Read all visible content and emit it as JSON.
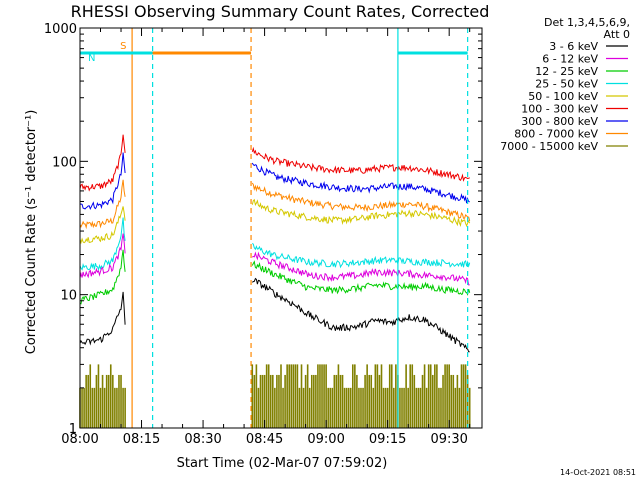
{
  "chart_data": {
    "type": "line",
    "title": "RHESSI Observing Summary Count Rates, Corrected",
    "xlabel": "Start Time (02-Mar-07 07:59:02)",
    "ylabel": "Corrected Count Rate (s⁻¹ detector⁻¹)",
    "y_scale": "log",
    "ylim": [
      1,
      1000
    ],
    "xlim_minutes": [
      0,
      98
    ],
    "x_ticks": [
      {
        "label": "08:00",
        "min": 0
      },
      {
        "label": "08:15",
        "min": 15
      },
      {
        "label": "08:30",
        "min": 30
      },
      {
        "label": "08:45",
        "min": 45
      },
      {
        "label": "09:00",
        "min": 60
      },
      {
        "label": "09:15",
        "min": 75
      },
      {
        "label": "09:30",
        "min": 90
      }
    ],
    "y_ticks": [
      {
        "label": "1",
        "value": 1
      },
      {
        "label": "10",
        "value": 10
      },
      {
        "label": "100",
        "value": 100
      },
      {
        "label": "1000",
        "value": 1000
      }
    ],
    "legend_header": [
      "Det 1,3,4,5,6,9,",
      "Att 0"
    ],
    "legend_position": "right",
    "data_gap_minutes": [
      11,
      42
    ],
    "series": [
      {
        "name": "3 - 6 keV",
        "color": "#000000",
        "values": [
          [
            0,
            4.3
          ],
          [
            5,
            4.6
          ],
          [
            8,
            5.5
          ],
          [
            10,
            8
          ],
          [
            10.5,
            10
          ],
          [
            11,
            6
          ],
          [
            42,
            13
          ],
          [
            45,
            11.5
          ],
          [
            48,
            10
          ],
          [
            52,
            8.5
          ],
          [
            56,
            7
          ],
          [
            62,
            5.6
          ],
          [
            68,
            5.8
          ],
          [
            72,
            6.4
          ],
          [
            76,
            6.2
          ],
          [
            80,
            6.8
          ],
          [
            84,
            6.5
          ],
          [
            88,
            5.4
          ],
          [
            93,
            4.2
          ],
          [
            95,
            3.7
          ]
        ]
      },
      {
        "name": "6 - 12 keV",
        "color": "#dd00dd",
        "values": [
          [
            0,
            14
          ],
          [
            5,
            15
          ],
          [
            8,
            16
          ],
          [
            10,
            22
          ],
          [
            10.5,
            28
          ],
          [
            11,
            20
          ],
          [
            42,
            20
          ],
          [
            45,
            18.5
          ],
          [
            48,
            17
          ],
          [
            52,
            15.5
          ],
          [
            56,
            14
          ],
          [
            62,
            13.5
          ],
          [
            68,
            14
          ],
          [
            72,
            14.8
          ],
          [
            76,
            14.6
          ],
          [
            80,
            14.4
          ],
          [
            84,
            14
          ],
          [
            88,
            13.8
          ],
          [
            93,
            13
          ],
          [
            95,
            12.5
          ]
        ]
      },
      {
        "name": "12 - 25 keV",
        "color": "#00cc00",
        "values": [
          [
            0,
            9
          ],
          [
            5,
            10
          ],
          [
            8,
            11
          ],
          [
            10,
            16
          ],
          [
            10.5,
            22
          ],
          [
            11,
            15
          ],
          [
            42,
            17
          ],
          [
            45,
            15.5
          ],
          [
            48,
            14
          ],
          [
            52,
            12.5
          ],
          [
            56,
            11.2
          ],
          [
            62,
            10.8
          ],
          [
            68,
            11.2
          ],
          [
            72,
            11.8
          ],
          [
            76,
            11.6
          ],
          [
            80,
            11.4
          ],
          [
            84,
            11.6
          ],
          [
            88,
            11
          ],
          [
            93,
            10.6
          ],
          [
            95,
            10.5
          ]
        ]
      },
      {
        "name": "25 - 50 keV",
        "color": "#00e0e0",
        "values": [
          [
            0,
            16
          ],
          [
            5,
            16.5
          ],
          [
            8,
            18
          ],
          [
            10,
            28
          ],
          [
            10.5,
            36
          ],
          [
            11,
            24
          ],
          [
            42,
            23
          ],
          [
            45,
            21
          ],
          [
            48,
            19.5
          ],
          [
            52,
            18.5
          ],
          [
            56,
            17.5
          ],
          [
            62,
            17
          ],
          [
            68,
            17.5
          ],
          [
            72,
            18
          ],
          [
            76,
            18.2
          ],
          [
            80,
            17.8
          ],
          [
            84,
            17.6
          ],
          [
            88,
            17.4
          ],
          [
            93,
            17
          ],
          [
            95,
            16.8
          ]
        ]
      },
      {
        "name": "50 - 100 keV",
        "color": "#d4c800",
        "values": [
          [
            0,
            26
          ],
          [
            5,
            26.5
          ],
          [
            8,
            28
          ],
          [
            10,
            40
          ],
          [
            10.5,
            48
          ],
          [
            11,
            36
          ],
          [
            42,
            50
          ],
          [
            45,
            45
          ],
          [
            48,
            42
          ],
          [
            52,
            40
          ],
          [
            56,
            38
          ],
          [
            62,
            36
          ],
          [
            68,
            37
          ],
          [
            72,
            39
          ],
          [
            76,
            40
          ],
          [
            80,
            41
          ],
          [
            84,
            40
          ],
          [
            88,
            38
          ],
          [
            93,
            35
          ],
          [
            95,
            34
          ]
        ]
      },
      {
        "name": "100 - 300 keV",
        "color": "#ee0000",
        "values": [
          [
            0,
            64
          ],
          [
            5,
            65
          ],
          [
            8,
            72
          ],
          [
            10,
            110
          ],
          [
            10.5,
            165
          ],
          [
            11,
            120
          ],
          [
            42,
            120
          ],
          [
            45,
            108
          ],
          [
            48,
            100
          ],
          [
            52,
            95
          ],
          [
            56,
            90
          ],
          [
            62,
            86
          ],
          [
            68,
            85
          ],
          [
            72,
            88
          ],
          [
            76,
            90
          ],
          [
            80,
            90
          ],
          [
            84,
            86
          ],
          [
            88,
            82
          ],
          [
            93,
            76
          ],
          [
            95,
            72
          ]
        ]
      },
      {
        "name": "300 - 800 keV",
        "color": "#0000ee",
        "values": [
          [
            0,
            46
          ],
          [
            5,
            47
          ],
          [
            8,
            52
          ],
          [
            10,
            80
          ],
          [
            10.5,
            110
          ],
          [
            11,
            82
          ],
          [
            42,
            95
          ],
          [
            45,
            84
          ],
          [
            48,
            76
          ],
          [
            52,
            72
          ],
          [
            56,
            68
          ],
          [
            62,
            64
          ],
          [
            68,
            62
          ],
          [
            72,
            63
          ],
          [
            76,
            65
          ],
          [
            80,
            65
          ],
          [
            84,
            62
          ],
          [
            88,
            58
          ],
          [
            93,
            53
          ],
          [
            95,
            50
          ]
        ]
      },
      {
        "name": "800 - 7000 keV",
        "color": "#ff8800",
        "values": [
          [
            0,
            33
          ],
          [
            5,
            34
          ],
          [
            8,
            36
          ],
          [
            10,
            54
          ],
          [
            10.5,
            70
          ],
          [
            11,
            54
          ],
          [
            42,
            66
          ],
          [
            45,
            60
          ],
          [
            48,
            56
          ],
          [
            52,
            52
          ],
          [
            56,
            49
          ],
          [
            62,
            46
          ],
          [
            68,
            45
          ],
          [
            72,
            46
          ],
          [
            76,
            47
          ],
          [
            80,
            48
          ],
          [
            84,
            46
          ],
          [
            88,
            43
          ],
          [
            93,
            39
          ],
          [
            95,
            37
          ]
        ]
      },
      {
        "name": "7000 - 15000 keV",
        "color": "#808000",
        "values": []
      }
    ],
    "attenuator_bars": [
      {
        "label": "S",
        "color": "#ff8800",
        "from_min": 12.7,
        "to_min": 41.7,
        "value": 650
      },
      {
        "label": "N",
        "color": "#00e0e0",
        "from_min": 0,
        "to_min": 17.7,
        "value": 650
      },
      {
        "label": "",
        "color": "#00e0e0",
        "from_min": 77.5,
        "to_min": 94.5,
        "value": 650
      }
    ],
    "vertical_markers": [
      {
        "min": 12.7,
        "color": "#ff8800",
        "style": "solid"
      },
      {
        "min": 41.7,
        "color": "#ff8800",
        "style": "dashed"
      },
      {
        "min": 17.7,
        "color": "#00e0e0",
        "style": "dashed"
      },
      {
        "min": 77.5,
        "color": "#00e0e0",
        "style": "solid"
      },
      {
        "min": 94.5,
        "color": "#00e0e0",
        "style": "dashed"
      }
    ]
  },
  "footer_timestamp": "14-Oct-2021 08:51"
}
